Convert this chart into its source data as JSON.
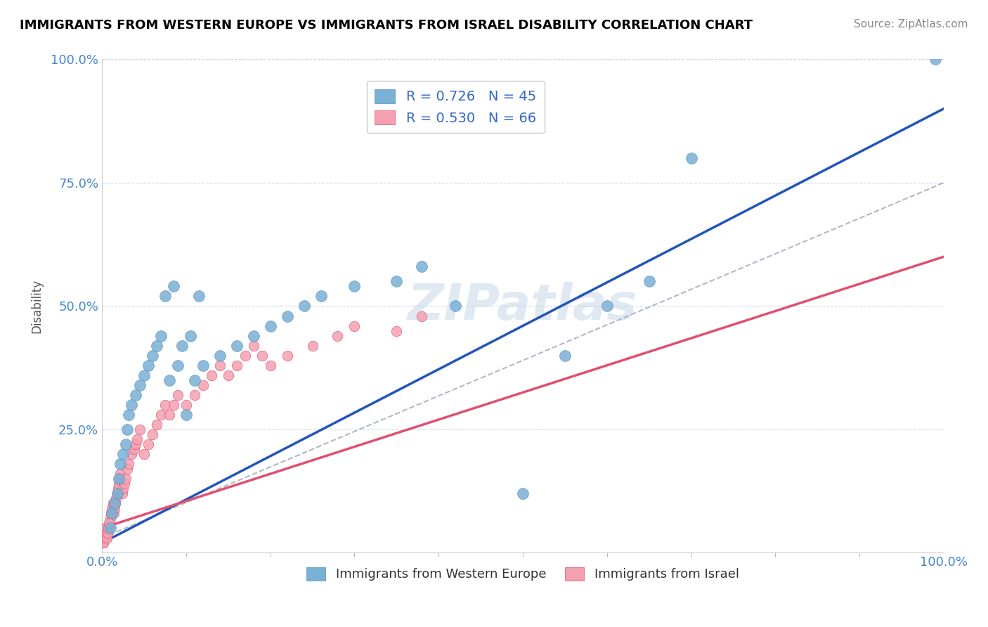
{
  "title": "IMMIGRANTS FROM WESTERN EUROPE VS IMMIGRANTS FROM ISRAEL DISABILITY CORRELATION CHART",
  "source": "Source: ZipAtlas.com",
  "ylabel": "Disability",
  "legend1_label": "R = 0.726   N = 45",
  "legend2_label": "R = 0.530   N = 66",
  "color_blue": "#7ab0d4",
  "color_pink": "#f4a0b0",
  "line_blue": "#2255bb",
  "line_pink": "#e05070",
  "blue_x": [
    1.0,
    1.2,
    1.5,
    1.8,
    2.0,
    2.2,
    2.5,
    2.8,
    3.0,
    3.2,
    3.5,
    4.0,
    4.5,
    5.0,
    5.5,
    6.0,
    6.5,
    7.0,
    8.0,
    9.0,
    10.0,
    11.0,
    12.0,
    14.0,
    16.0,
    18.0,
    20.0,
    22.0,
    24.0,
    26.0,
    30.0,
    35.0,
    38.0,
    42.0,
    50.0,
    55.0,
    60.0,
    65.0,
    70.0,
    99.0,
    7.5,
    8.5,
    9.5,
    10.5,
    11.5
  ],
  "blue_y": [
    5.0,
    8.0,
    10.0,
    12.0,
    15.0,
    18.0,
    20.0,
    22.0,
    25.0,
    28.0,
    30.0,
    32.0,
    34.0,
    36.0,
    38.0,
    40.0,
    42.0,
    44.0,
    35.0,
    38.0,
    28.0,
    35.0,
    38.0,
    40.0,
    42.0,
    44.0,
    46.0,
    48.0,
    50.0,
    52.0,
    54.0,
    55.0,
    58.0,
    50.0,
    12.0,
    40.0,
    50.0,
    55.0,
    80.0,
    100.0,
    52.0,
    54.0,
    42.0,
    44.0,
    52.0
  ],
  "pink_x": [
    0.2,
    0.3,
    0.4,
    0.5,
    0.6,
    0.7,
    0.8,
    0.9,
    1.0,
    1.1,
    1.2,
    1.3,
    1.4,
    1.5,
    1.6,
    1.7,
    1.8,
    1.9,
    2.0,
    2.1,
    2.2,
    2.4,
    2.5,
    2.7,
    2.8,
    3.0,
    3.2,
    3.5,
    3.8,
    4.0,
    4.2,
    4.5,
    5.0,
    5.5,
    6.0,
    6.5,
    7.0,
    7.5,
    8.0,
    8.5,
    9.0,
    10.0,
    11.0,
    12.0,
    13.0,
    14.0,
    15.0,
    16.0,
    17.0,
    18.0,
    19.0,
    20.0,
    22.0,
    25.0,
    28.0,
    30.0,
    35.0,
    38.0,
    0.15,
    0.25,
    0.35,
    0.45,
    0.55,
    0.65,
    0.75,
    0.85
  ],
  "pink_y": [
    2.0,
    3.0,
    4.0,
    5.0,
    3.0,
    4.0,
    5.0,
    6.0,
    7.0,
    8.0,
    9.0,
    10.0,
    8.0,
    9.0,
    10.0,
    11.0,
    12.0,
    13.0,
    14.0,
    15.0,
    16.0,
    12.0,
    13.0,
    14.0,
    15.0,
    17.0,
    18.0,
    20.0,
    21.0,
    22.0,
    23.0,
    25.0,
    20.0,
    22.0,
    24.0,
    26.0,
    28.0,
    30.0,
    28.0,
    30.0,
    32.0,
    30.0,
    32.0,
    34.0,
    36.0,
    38.0,
    36.0,
    38.0,
    40.0,
    42.0,
    40.0,
    38.0,
    40.0,
    42.0,
    44.0,
    46.0,
    45.0,
    48.0,
    2.0,
    3.0,
    4.0,
    5.0,
    3.0,
    4.0,
    5.0,
    6.0
  ],
  "blue_reg_slope": 0.88,
  "blue_reg_intercept": 2.0,
  "pink_reg_slope": 0.55,
  "pink_reg_intercept": 5.0,
  "gray_slope": 0.72,
  "gray_intercept": 3.0
}
